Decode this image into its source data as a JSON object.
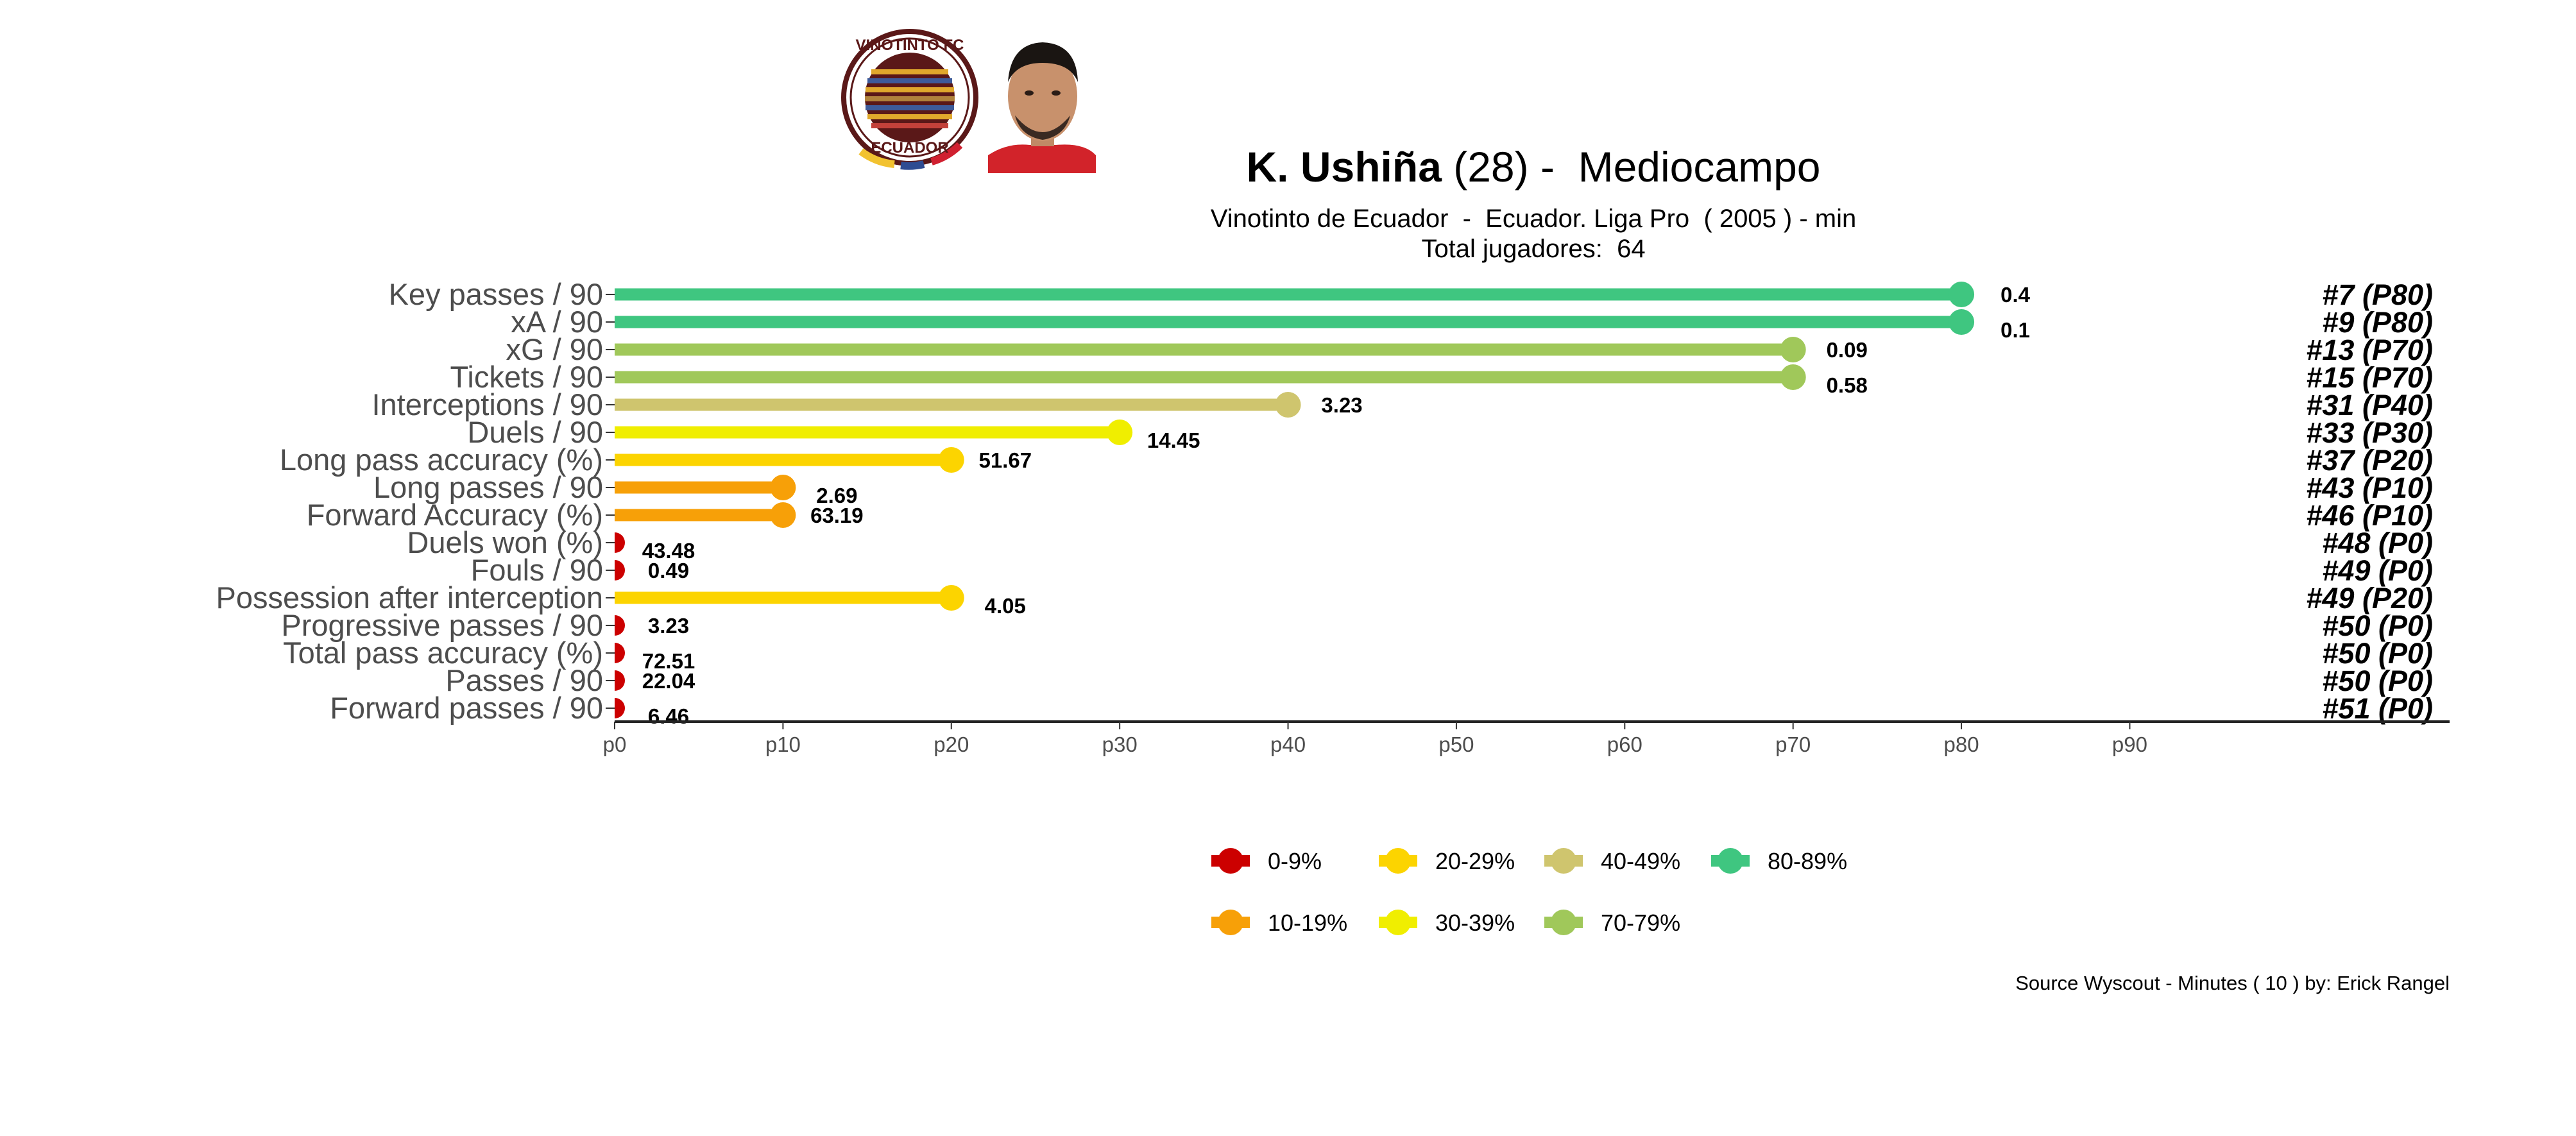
{
  "header": {
    "player_name": "K. Ushiña",
    "player_age": "(28)",
    "position_sep": " -  ",
    "position": "Mediocampo",
    "subtitle": "Vinotinto de Ecuador  -  Ecuador. Liga Pro  ( 2005 ) - min",
    "total_players": "Total jugadores:  64"
  },
  "club_badge": {
    "top_text": "VINOTINTO FC",
    "bottom_text": "ECUADOR",
    "color": "#5a1818"
  },
  "caption": "Source Wyscout - Minutes ( 10 ) by: Erick Rangel",
  "chart_data": {
    "type": "lollipop",
    "categories": [
      "Key passes / 90",
      "xA / 90",
      "xG / 90",
      "Tickets / 90",
      "Interceptions / 90",
      "Duels / 90",
      "Long pass accuracy (%)",
      "Long passes / 90",
      "Forward Accuracy (%)",
      "Duels won (%)",
      "Fouls / 90",
      "Possession after interception",
      "Progressive passes / 90",
      "Total pass accuracy (%)",
      "Passes / 90",
      "Forward passes / 90"
    ],
    "percentiles": [
      80,
      80,
      70,
      70,
      40,
      30,
      20,
      10,
      10,
      0,
      0,
      20,
      0,
      0,
      0,
      0
    ],
    "value_labels": [
      "0.4",
      "0.1",
      "0.09",
      "0.58",
      "3.23",
      "14.45",
      "51.67",
      "2.69",
      "63.19",
      "43.48",
      "0.49",
      "4.05",
      "3.23",
      "72.51",
      "22.04",
      "6.46"
    ],
    "rank_labels": [
      "#7 (P80)",
      "#9 (P80)",
      "#13 (P70)",
      "#15 (P70)",
      "#31 (P40)",
      "#33 (P30)",
      "#37 (P20)",
      "#43 (P10)",
      "#46 (P10)",
      "#48 (P0)",
      "#49 (P0)",
      "#49 (P20)",
      "#50 (P0)",
      "#50 (P0)",
      "#50 (P0)",
      "#51 (P0)"
    ],
    "x_ticks": [
      "p0",
      "p10",
      "p20",
      "p30",
      "p40",
      "p50",
      "p60",
      "p70",
      "p80",
      "p90"
    ],
    "xlim": [
      0,
      109
    ],
    "grid": false,
    "legend_position": "bottom",
    "legend": [
      {
        "label": "0-9%",
        "color": "#cc0000"
      },
      {
        "label": "10-19%",
        "color": "#f7a008"
      },
      {
        "label": "20-29%",
        "color": "#fcd400"
      },
      {
        "label": "30-39%",
        "color": "#f0ee00"
      },
      {
        "label": "40-49%",
        "color": "#cfc56e"
      },
      {
        "label": "70-79%",
        "color": "#a0c85a"
      },
      {
        "label": "80-89%",
        "color": "#3fc680"
      }
    ]
  }
}
